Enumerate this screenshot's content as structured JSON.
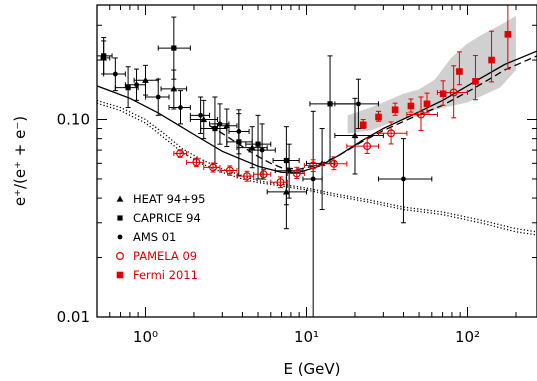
{
  "chart_data": {
    "type": "scatter",
    "xlabel": "E (GeV)",
    "ylabel": "e⁺/(e⁺ + e⁻)",
    "xscale": "log",
    "yscale": "log",
    "xlim": [
      0.5,
      270
    ],
    "ylim": [
      0.01,
      0.38
    ],
    "x_ticks": [
      {
        "value": 1,
        "label": "10⁰"
      },
      {
        "value": 10,
        "label": "10¹"
      },
      {
        "value": 100,
        "label": "10²"
      }
    ],
    "y_ticks": [
      {
        "value": 0.01,
        "label": "0.01"
      },
      {
        "value": 0.1,
        "label": "0.10"
      }
    ],
    "legend_position": "bottom-left",
    "legend": [
      {
        "label": "HEAT 94+95",
        "marker": "triangle-filled",
        "color": "#000000"
      },
      {
        "label": "CAPRICE 94",
        "marker": "square-filled",
        "color": "#000000"
      },
      {
        "label": "AMS 01",
        "marker": "circle-filled",
        "color": "#000000"
      },
      {
        "label": "PAMELA 09",
        "marker": "circle-open",
        "color": "#e00000"
      },
      {
        "label": "Fermi 2011",
        "marker": "square-filled",
        "color": "#e00000"
      }
    ],
    "series": [
      {
        "name": "HEAT 94+95",
        "marker": "triangle-filled",
        "color": "#000000",
        "points": [
          {
            "x": 0.55,
            "y": 0.205,
            "yerr": [
              0.035,
              0.045
            ],
            "xerr": [
              0.53,
              0.6
            ]
          },
          {
            "x": 1.0,
            "y": 0.158,
            "yerr": [
              0.025,
              0.03
            ],
            "xerr": [
              0.85,
              1.2
            ]
          },
          {
            "x": 1.5,
            "y": 0.143,
            "yerr": [
              0.03,
              0.035
            ],
            "xerr": [
              1.25,
              1.8
            ]
          },
          {
            "x": 2.3,
            "y": 0.1,
            "yerr": [
              0.02,
              0.025
            ],
            "xerr": [
              1.9,
              2.8
            ]
          },
          {
            "x": 3.2,
            "y": 0.093,
            "yerr": [
              0.02,
              0.02
            ],
            "xerr": [
              2.8,
              3.7
            ]
          },
          {
            "x": 4.6,
            "y": 0.072,
            "yerr": [
              0.015,
              0.02
            ],
            "xerr": [
              3.7,
              5.7
            ]
          },
          {
            "x": 7.5,
            "y": 0.043,
            "yerr": [
              0.015,
              0.02
            ],
            "xerr": [
              5.7,
              10
            ]
          },
          {
            "x": 12.5,
            "y": 0.06,
            "yerr": [
              0.025,
              0.03
            ],
            "xerr": [
              10,
              15
            ]
          },
          {
            "x": 20.0,
            "y": 0.083,
            "yerr": [
              0.03,
              0.045
            ],
            "xerr": [
              15,
              30
            ]
          }
        ]
      },
      {
        "name": "CAPRICE 94",
        "marker": "square-filled",
        "color": "#000000",
        "points": [
          {
            "x": 0.55,
            "y": 0.21,
            "yerr": [
              0.04,
              0.05
            ],
            "xerr": [
              0.5,
              0.62
            ]
          },
          {
            "x": 0.78,
            "y": 0.145,
            "yerr": [
              0.03,
              0.04
            ],
            "xerr": [
              0.65,
              0.9
            ]
          },
          {
            "x": 1.5,
            "y": 0.23,
            "yerr": [
              0.07,
              0.1
            ],
            "xerr": [
              1.2,
              1.9
            ]
          },
          {
            "x": 2.7,
            "y": 0.09,
            "yerr": [
              0.03,
              0.04
            ],
            "xerr": [
              2.2,
              3.2
            ]
          },
          {
            "x": 3.8,
            "y": 0.077,
            "yerr": [
              0.025,
              0.03
            ],
            "xerr": [
              3.2,
              4.6
            ]
          },
          {
            "x": 5.0,
            "y": 0.075,
            "yerr": [
              0.025,
              0.03
            ],
            "xerr": [
              4.2,
              6
            ]
          },
          {
            "x": 7.5,
            "y": 0.062,
            "yerr": [
              0.025,
              0.03
            ],
            "xerr": [
              6.2,
              9
            ]
          },
          {
            "x": 14.0,
            "y": 0.12,
            "yerr": [
              0.06,
              0.09
            ],
            "xerr": [
              10.5,
              20
            ]
          }
        ]
      },
      {
        "name": "AMS 01",
        "marker": "circle-filled",
        "color": "#000000",
        "points": [
          {
            "x": 0.65,
            "y": 0.17,
            "yerr": [
              0.03,
              0.035
            ],
            "xerr": [
              0.55,
              0.75
            ]
          },
          {
            "x": 0.88,
            "y": 0.15,
            "yerr": [
              0.025,
              0.03
            ],
            "xerr": [
              0.75,
              1.0
            ]
          },
          {
            "x": 1.2,
            "y": 0.13,
            "yerr": [
              0.025,
              0.03
            ],
            "xerr": [
              1.0,
              1.4
            ]
          },
          {
            "x": 1.65,
            "y": 0.115,
            "yerr": [
              0.02,
              0.025
            ],
            "xerr": [
              1.4,
              1.9
            ]
          },
          {
            "x": 2.2,
            "y": 0.105,
            "yerr": [
              0.02,
              0.025
            ],
            "xerr": [
              1.9,
              2.5
            ]
          },
          {
            "x": 2.9,
            "y": 0.095,
            "yerr": [
              0.02,
              0.025
            ],
            "xerr": [
              2.5,
              3.3
            ]
          },
          {
            "x": 3.8,
            "y": 0.087,
            "yerr": [
              0.02,
              0.025
            ],
            "xerr": [
              3.3,
              4.4
            ]
          },
          {
            "x": 5.3,
            "y": 0.07,
            "yerr": [
              0.02,
              0.025
            ],
            "xerr": [
              4.4,
              6.4
            ]
          },
          {
            "x": 7.8,
            "y": 0.055,
            "yerr": [
              0.015,
              0.02
            ],
            "xerr": [
              6.4,
              9.5
            ]
          },
          {
            "x": 11.0,
            "y": 0.05,
            "yerr": [
              0.04,
              0.06
            ],
            "xerr": [
              9.5,
              12.5
            ]
          },
          {
            "x": 21.0,
            "y": 0.12,
            "yerr": [
              0.03,
              0.04
            ],
            "xerr": [
              15,
              28
            ]
          },
          {
            "x": 40.0,
            "y": 0.05,
            "yerr": [
              0.02,
              0.03
            ],
            "xerr": [
              28,
              60
            ]
          }
        ]
      },
      {
        "name": "PAMELA 09",
        "marker": "circle-open",
        "color": "#e00000",
        "points": [
          {
            "x": 1.64,
            "y": 0.0673,
            "yerr": [
              0.003,
              0.003
            ],
            "xerr": [
              1.5,
              1.8
            ]
          },
          {
            "x": 2.07,
            "y": 0.0607,
            "yerr": [
              0.003,
              0.003
            ],
            "xerr": [
              1.8,
              2.3
            ]
          },
          {
            "x": 2.63,
            "y": 0.0572,
            "yerr": [
              0.003,
              0.003
            ],
            "xerr": [
              2.3,
              2.9
            ]
          },
          {
            "x": 3.34,
            "y": 0.0552,
            "yerr": [
              0.003,
              0.003
            ],
            "xerr": [
              2.9,
              3.7
            ]
          },
          {
            "x": 4.27,
            "y": 0.0517,
            "yerr": [
              0.003,
              0.003
            ],
            "xerr": [
              3.7,
              4.7
            ]
          },
          {
            "x": 5.42,
            "y": 0.0528,
            "yerr": [
              0.003,
              0.003
            ],
            "xerr": [
              4.7,
              6.0
            ]
          },
          {
            "x": 6.89,
            "y": 0.0482,
            "yerr": [
              0.003,
              0.003
            ],
            "xerr": [
              6.0,
              7.6
            ]
          },
          {
            "x": 8.7,
            "y": 0.0533,
            "yerr": [
              0.003,
              0.004
            ],
            "xerr": [
              7.6,
              9.7
            ]
          },
          {
            "x": 11.0,
            "y": 0.0585,
            "yerr": [
              0.004,
              0.004
            ],
            "xerr": [
              9.7,
              12.5
            ]
          },
          {
            "x": 14.8,
            "y": 0.0597,
            "yerr": [
              0.004,
              0.005
            ],
            "xerr": [
              12.5,
              17.8
            ]
          },
          {
            "x": 23.8,
            "y": 0.0733,
            "yerr": [
              0.006,
              0.007
            ],
            "xerr": [
              17.8,
              28
            ]
          },
          {
            "x": 33.5,
            "y": 0.0852,
            "yerr": [
              0.01,
              0.012
            ],
            "xerr": [
              28,
              42
            ]
          },
          {
            "x": 51.4,
            "y": 0.106,
            "yerr": [
              0.018,
              0.024
            ],
            "xerr": [
              42,
              65
            ]
          },
          {
            "x": 82.0,
            "y": 0.137,
            "yerr": [
              0.035,
              0.05
            ],
            "xerr": [
              65,
              100
            ]
          }
        ]
      },
      {
        "name": "Fermi 2011",
        "marker": "square-filled",
        "color": "#e00000",
        "points": [
          {
            "x": 22.5,
            "y": 0.094,
            "yerr": [
              0.004,
              0.006
            ]
          },
          {
            "x": 28.0,
            "y": 0.103,
            "yerr": [
              0.005,
              0.007
            ]
          },
          {
            "x": 35.5,
            "y": 0.112,
            "yerr": [
              0.007,
              0.009
            ]
          },
          {
            "x": 44.5,
            "y": 0.117,
            "yerr": [
              0.008,
              0.01
            ]
          },
          {
            "x": 56.0,
            "y": 0.12,
            "yerr": [
              0.012,
              0.016
            ]
          },
          {
            "x": 70.5,
            "y": 0.135,
            "yerr": [
              0.017,
              0.022
            ]
          },
          {
            "x": 89.0,
            "y": 0.175,
            "yerr": [
              0.025,
              0.045
            ]
          },
          {
            "x": 112.0,
            "y": 0.156,
            "yerr": [
              0.03,
              0.055
            ]
          },
          {
            "x": 141.0,
            "y": 0.2,
            "yerr": [
              0.045,
              0.08
            ]
          },
          {
            "x": 178.0,
            "y": 0.27,
            "yerr": [
              0.09,
              0.11
            ]
          }
        ]
      }
    ],
    "band": {
      "color": "#d0d0d0",
      "x": [
        18,
        25,
        32,
        40,
        50,
        63,
        79,
        100,
        126,
        159,
        200
      ],
      "lower": [
        0.085,
        0.088,
        0.095,
        0.1,
        0.104,
        0.112,
        0.117,
        0.122,
        0.133,
        0.145,
        0.178
      ],
      "upper": [
        0.105,
        0.115,
        0.125,
        0.135,
        0.142,
        0.16,
        0.205,
        0.243,
        0.272,
        0.3,
        0.335
      ]
    },
    "curves": [
      {
        "style": "solid",
        "x": [
          0.5,
          0.8,
          1.2,
          2,
          3,
          5,
          7,
          9,
          12,
          16,
          22,
          30,
          45,
          70,
          110,
          170,
          270
        ],
        "y": [
          0.148,
          0.128,
          0.108,
          0.084,
          0.069,
          0.058,
          0.054,
          0.054,
          0.058,
          0.066,
          0.078,
          0.09,
          0.105,
          0.125,
          0.155,
          0.19,
          0.222
        ]
      },
      {
        "style": "dashed",
        "x": [
          2.5,
          3,
          4,
          5,
          6,
          7,
          9,
          12,
          16,
          22,
          30,
          45,
          70,
          110,
          170,
          270
        ],
        "y": [
          0.093,
          0.085,
          0.073,
          0.065,
          0.06,
          0.057,
          0.056,
          0.059,
          0.066,
          0.077,
          0.088,
          0.102,
          0.118,
          0.144,
          0.178,
          0.21
        ]
      },
      {
        "style": "dotted",
        "x": [
          0.5,
          0.7,
          1.0,
          1.3,
          1.7,
          2.2,
          3,
          4,
          5,
          7,
          10,
          15,
          25,
          40,
          70,
          120,
          200,
          270
        ],
        "y": [
          0.125,
          0.115,
          0.1,
          0.085,
          0.071,
          0.063,
          0.056,
          0.052,
          0.049,
          0.047,
          0.045,
          0.042,
          0.039,
          0.036,
          0.034,
          0.031,
          0.028,
          0.027
        ]
      },
      {
        "style": "dotted",
        "x": [
          0.5,
          0.7,
          1.0,
          1.3,
          1.7,
          2.2,
          3,
          4,
          5,
          7,
          10,
          15,
          25,
          40,
          70,
          120,
          200,
          270
        ],
        "y": [
          0.121,
          0.111,
          0.096,
          0.081,
          0.068,
          0.06,
          0.054,
          0.05,
          0.048,
          0.046,
          0.044,
          0.041,
          0.038,
          0.035,
          0.033,
          0.03,
          0.027,
          0.026
        ]
      }
    ]
  }
}
